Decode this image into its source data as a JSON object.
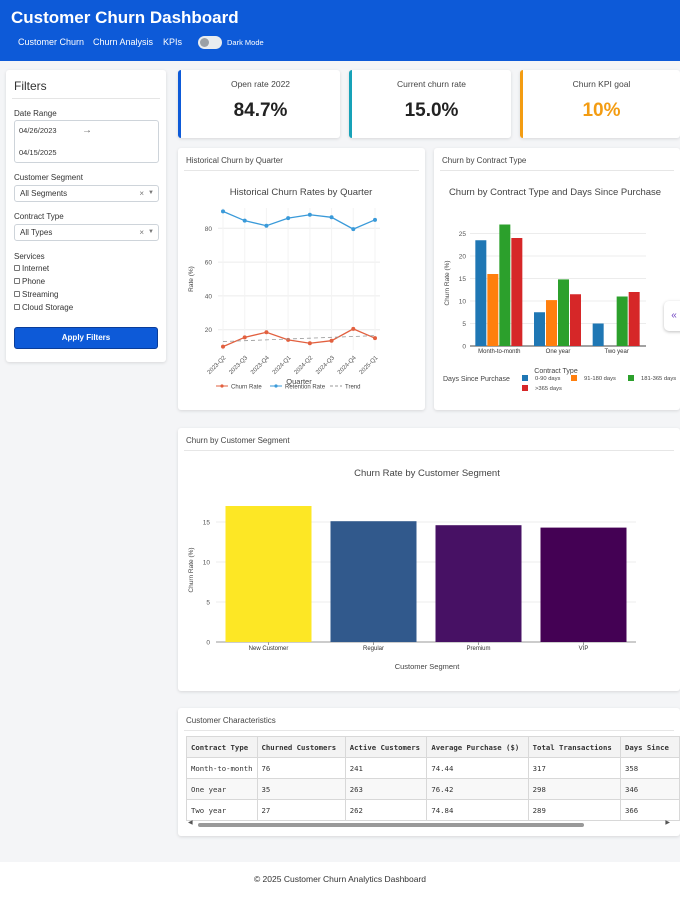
{
  "app": {
    "title": "Customer Churn Dashboard",
    "nav": [
      "Customer Churn",
      "Churn Analysis",
      "KPIs"
    ],
    "dark_mode_label": "Dark Mode",
    "dark_mode_on": false,
    "brand_color": "#0d5ad8"
  },
  "filters": {
    "title": "Filters",
    "date_range_label": "Date Range",
    "start_date": "04/26/2023",
    "end_date": "04/15/2025",
    "segment_label": "Customer Segment",
    "segment_value": "All Segments",
    "contract_label": "Contract Type",
    "contract_value": "All Types",
    "services_label": "Services",
    "services": [
      "Internet",
      "Phone",
      "Streaming",
      "Cloud Storage"
    ],
    "apply_label": "Apply Filters"
  },
  "kpis": [
    {
      "label": "Open rate 2022",
      "value": "84.7%",
      "color": "#0d5ad8"
    },
    {
      "label": "Current churn rate",
      "value": "15.0%",
      "color": "#17a2b8"
    },
    {
      "label": "Churn KPI goal",
      "value": "10%",
      "color": "#f39c12"
    }
  ],
  "panels": {
    "historical": "Historical Churn by Quarter",
    "contract": "Churn by Contract Type",
    "segment": "Churn by Customer Segment",
    "table": "Customer Characteristics"
  },
  "chart_data": [
    {
      "type": "line",
      "title": "Historical Churn Rates by Quarter",
      "xlabel": "Quarter",
      "ylabel": "Rate (%)",
      "categories": [
        "2023-Q2",
        "2023-Q3",
        "2023-Q4",
        "2024-Q1",
        "2024-Q2",
        "2024-Q3",
        "2024-Q4",
        "2025-Q1"
      ],
      "ylim": [
        8,
        92
      ],
      "yticks": [
        20,
        40,
        60,
        80
      ],
      "series": [
        {
          "name": "Churn Rate",
          "color": "#e2603f",
          "values": [
            10,
            15.5,
            18.5,
            14,
            12,
            13.5,
            20.5,
            15
          ]
        },
        {
          "name": "Retention Rate",
          "color": "#3a9ad9",
          "values": [
            90,
            84.5,
            81.5,
            86,
            88,
            86.5,
            79.5,
            85
          ]
        },
        {
          "name": "Trend",
          "color": "#999999",
          "dash": true,
          "values": [
            13,
            13.5,
            14,
            14.5,
            15,
            15.5,
            16,
            16.5
          ]
        }
      ],
      "legend": "bottom"
    },
    {
      "type": "bar",
      "title": "Churn by Contract Type and Days Since Purchase",
      "xlabel": "Contract Type",
      "ylabel": "Churn Rate (%)",
      "categories": [
        "Month-to-month",
        "One year",
        "Two year"
      ],
      "ylim": [
        0,
        28
      ],
      "yticks": [
        0,
        5,
        10,
        15,
        20,
        25
      ],
      "legend_title": "Days Since Purchase",
      "series": [
        {
          "name": "0-90 days",
          "color": "#1f77b4",
          "values": [
            23.5,
            7.5,
            5
          ]
        },
        {
          "name": "91-180 days",
          "color": "#ff7f0e",
          "values": [
            16,
            10.2,
            0
          ]
        },
        {
          "name": "181-365 days",
          "color": "#2ca02c",
          "values": [
            27,
            14.8,
            11
          ]
        },
        {
          "name": ">365 days",
          "color": "#d62728",
          "values": [
            24,
            11.5,
            12
          ]
        }
      ]
    },
    {
      "type": "bar",
      "title": "Churn Rate by Customer Segment",
      "xlabel": "Customer Segment",
      "ylabel": "Churn Rate (%)",
      "categories": [
        "New Customer",
        "Regular",
        "Premium",
        "VIP"
      ],
      "values": [
        17,
        15.1,
        14.6,
        14.3
      ],
      "colors": [
        "#fde725",
        "#31598c",
        "#471164",
        "#440154"
      ],
      "ylim": [
        0,
        18
      ],
      "yticks": [
        0,
        5,
        10,
        15
      ]
    }
  ],
  "table": {
    "columns": [
      "Contract Type",
      "Churned Customers",
      "Active Customers",
      "Average Purchase ($)",
      "Total Transactions",
      "Days Since"
    ],
    "rows": [
      [
        "Month-to-month",
        "76",
        "241",
        "74.44",
        "317",
        "358"
      ],
      [
        "One year",
        "35",
        "263",
        "76.42",
        "298",
        "346"
      ],
      [
        "Two year",
        "27",
        "262",
        "74.84",
        "289",
        "366"
      ]
    ]
  },
  "footer": "© 2025 Customer Churn Analytics Dashboard"
}
